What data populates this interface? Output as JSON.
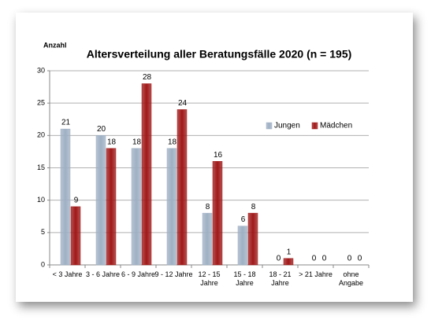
{
  "chart_data": {
    "type": "bar",
    "title": "Altersverteilung aller Beratungsfälle 2020 (n = 195)",
    "y_label": "Anzahl",
    "categories": [
      "< 3 Jahre",
      "3 - 6 Jahre",
      "6 - 9 Jahre",
      "9 - 12 Jahre",
      "12 - 15 Jahre",
      "15 - 18 Jahre",
      "18 - 21 Jahre",
      "> 21 Jahre",
      "ohne Angabe"
    ],
    "series": [
      {
        "name": "Jungen",
        "color": "#9fb0c4",
        "values": [
          21,
          20,
          18,
          18,
          8,
          6,
          0,
          0,
          0
        ]
      },
      {
        "name": "Mädchen",
        "color": "#a01818",
        "values": [
          9,
          18,
          28,
          24,
          16,
          8,
          1,
          0,
          0
        ]
      }
    ],
    "ylim": [
      0,
      30
    ],
    "yticks": [
      0,
      5,
      10,
      15,
      20,
      25,
      30
    ],
    "grid": true
  }
}
